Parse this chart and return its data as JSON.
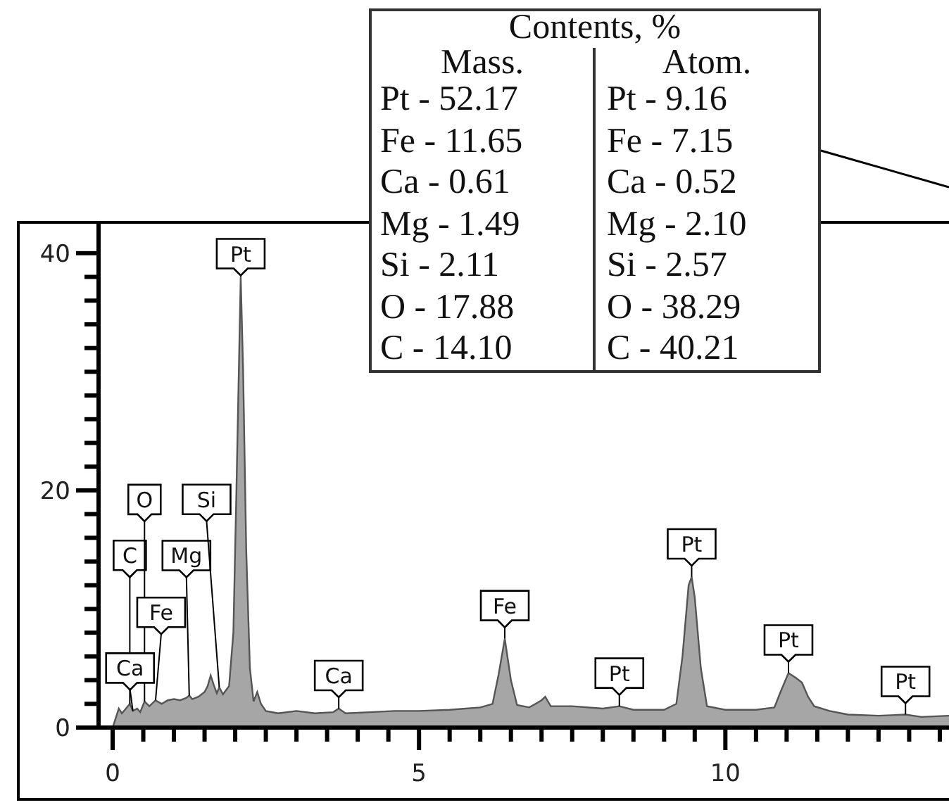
{
  "chart_data": {
    "type": "area",
    "x": [
      0.0,
      0.05,
      0.1,
      0.15,
      0.2,
      0.28,
      0.33,
      0.4,
      0.45,
      0.52,
      0.6,
      0.7,
      0.8,
      0.9,
      1.0,
      1.1,
      1.2,
      1.25,
      1.3,
      1.4,
      1.5,
      1.55,
      1.6,
      1.65,
      1.7,
      1.74,
      1.8,
      1.9,
      1.97,
      2.02,
      2.09,
      2.13,
      2.18,
      2.24,
      2.3,
      2.36,
      2.42,
      2.5,
      2.7,
      3.0,
      3.3,
      3.6,
      3.69,
      3.8,
      4.2,
      4.6,
      5.0,
      5.5,
      6.0,
      6.2,
      6.3,
      6.4,
      6.5,
      6.6,
      6.8,
      7.0,
      7.06,
      7.15,
      7.5,
      8.0,
      8.27,
      8.5,
      9.0,
      9.2,
      9.3,
      9.4,
      9.45,
      9.5,
      9.6,
      9.7,
      10.0,
      10.5,
      10.8,
      10.9,
      11.03,
      11.15,
      11.25,
      11.35,
      11.45,
      11.7,
      12.0,
      12.5,
      12.94,
      13.2,
      13.65
    ],
    "values": [
      0,
      0.8,
      1.6,
      1.2,
      1.5,
      2.0,
      1.4,
      1.6,
      1.3,
      2.2,
      1.8,
      2.3,
      2.0,
      2.3,
      2.4,
      2.3,
      2.5,
      2.7,
      2.4,
      2.6,
      3.0,
      3.5,
      4.4,
      3.6,
      2.9,
      3.4,
      2.8,
      3.5,
      8,
      20,
      38,
      30,
      15,
      5,
      2.2,
      3.0,
      2.0,
      1.4,
      1.2,
      1.4,
      1.2,
      1.3,
      1.6,
      1.2,
      1.3,
      1.4,
      1.4,
      1.5,
      1.7,
      2.0,
      4.5,
      7.5,
      4.0,
      1.9,
      1.7,
      2.3,
      2.6,
      1.8,
      1.8,
      1.6,
      1.8,
      1.5,
      1.5,
      2.0,
      6.0,
      12.0,
      12.7,
      11.0,
      5.0,
      1.8,
      1.5,
      1.5,
      1.7,
      3.0,
      4.6,
      4.2,
      3.8,
      2.6,
      1.8,
      1.4,
      1.1,
      1.0,
      1.1,
      0.9,
      1.0
    ],
    "color": "#a6a6a6",
    "xlim": [
      -0.23,
      13.65
    ],
    "ylim": [
      0,
      42.6
    ],
    "xticks": [
      0,
      {
        "value": 0.5,
        "label": null
      },
      {
        "value": 1,
        "label": null
      },
      {
        "value": 1.5,
        "label": null
      },
      {
        "value": 2,
        "label": null
      },
      {
        "value": 2.5,
        "label": null
      },
      {
        "value": 3,
        "label": null
      },
      {
        "value": 3.5,
        "label": null
      },
      {
        "value": 4,
        "label": null
      },
      {
        "value": 4.5,
        "label": null
      },
      5,
      {
        "value": 5.5,
        "label": null
      },
      {
        "value": 6,
        "label": null
      },
      {
        "value": 6.5,
        "label": null
      },
      {
        "value": 7,
        "label": null
      },
      {
        "value": 7.5,
        "label": null
      },
      {
        "value": 8,
        "label": null
      },
      {
        "value": 8.5,
        "label": null
      },
      {
        "value": 9,
        "label": null
      },
      {
        "value": 9.5,
        "label": null
      },
      10,
      {
        "value": 10.5,
        "label": null
      },
      {
        "value": 11,
        "label": null
      },
      {
        "value": 11.5,
        "label": null
      },
      {
        "value": 12,
        "label": null
      },
      {
        "value": 12.5,
        "label": null
      },
      {
        "value": 13,
        "label": null
      },
      {
        "value": 13.5,
        "label": null
      }
    ],
    "yticks": [
      0,
      {
        "value": 2,
        "label": null
      },
      {
        "value": 4,
        "label": null
      },
      {
        "value": 6,
        "label": null
      },
      {
        "value": 8,
        "label": null
      },
      {
        "value": 10,
        "label": null
      },
      {
        "value": 12,
        "label": null
      },
      {
        "value": 14,
        "label": null
      },
      {
        "value": 16,
        "label": null
      },
      {
        "value": 18,
        "label": null
      },
      20,
      {
        "value": 22,
        "label": null
      },
      {
        "value": 24,
        "label": null
      },
      {
        "value": 26,
        "label": null
      },
      {
        "value": 28,
        "label": null
      },
      {
        "value": 30,
        "label": null
      },
      {
        "value": 32,
        "label": null
      },
      {
        "value": 34,
        "label": null
      },
      {
        "value": 36,
        "label": null
      },
      {
        "value": 38,
        "label": null
      },
      40
    ],
    "annotations": [
      {
        "text": "C",
        "x": 0.28,
        "y": 2.0
      },
      {
        "text": "O",
        "x": 0.52,
        "y": 2.2
      },
      {
        "text": "Ca",
        "x": 0.33,
        "y": 1.4
      },
      {
        "text": "Fe",
        "x": 0.7,
        "y": 2.3
      },
      {
        "text": "Mg",
        "x": 1.25,
        "y": 2.7
      },
      {
        "text": "Si",
        "x": 1.74,
        "y": 3.4
      },
      {
        "text": "Pt",
        "x": 2.09,
        "y": 38
      },
      {
        "text": "Ca",
        "x": 3.69,
        "y": 1.6
      },
      {
        "text": "Fe",
        "x": 6.4,
        "y": 7.5
      },
      {
        "text": "Pt",
        "x": 8.27,
        "y": 1.8
      },
      {
        "text": "Pt",
        "x": 9.45,
        "y": 12.7
      },
      {
        "text": "Pt",
        "x": 11.03,
        "y": 4.6
      },
      {
        "text": "Pt",
        "x": 12.94,
        "y": 1.1
      },
      "Contents, %",
      "Mass.",
      "Atom.",
      "Pt - 52.17",
      "Fe - 11.65",
      "Ca - 0.61",
      "Mg - 1.49",
      "Si - 2.11",
      "O - 17.88",
      "C - 14.10",
      "Pt - 9.16",
      "Fe - 7.15",
      "Ca - 0.52",
      "Mg - 2.10",
      "Si - 2.57",
      "O - 38.29",
      "C - 40.21"
    ]
  }
}
